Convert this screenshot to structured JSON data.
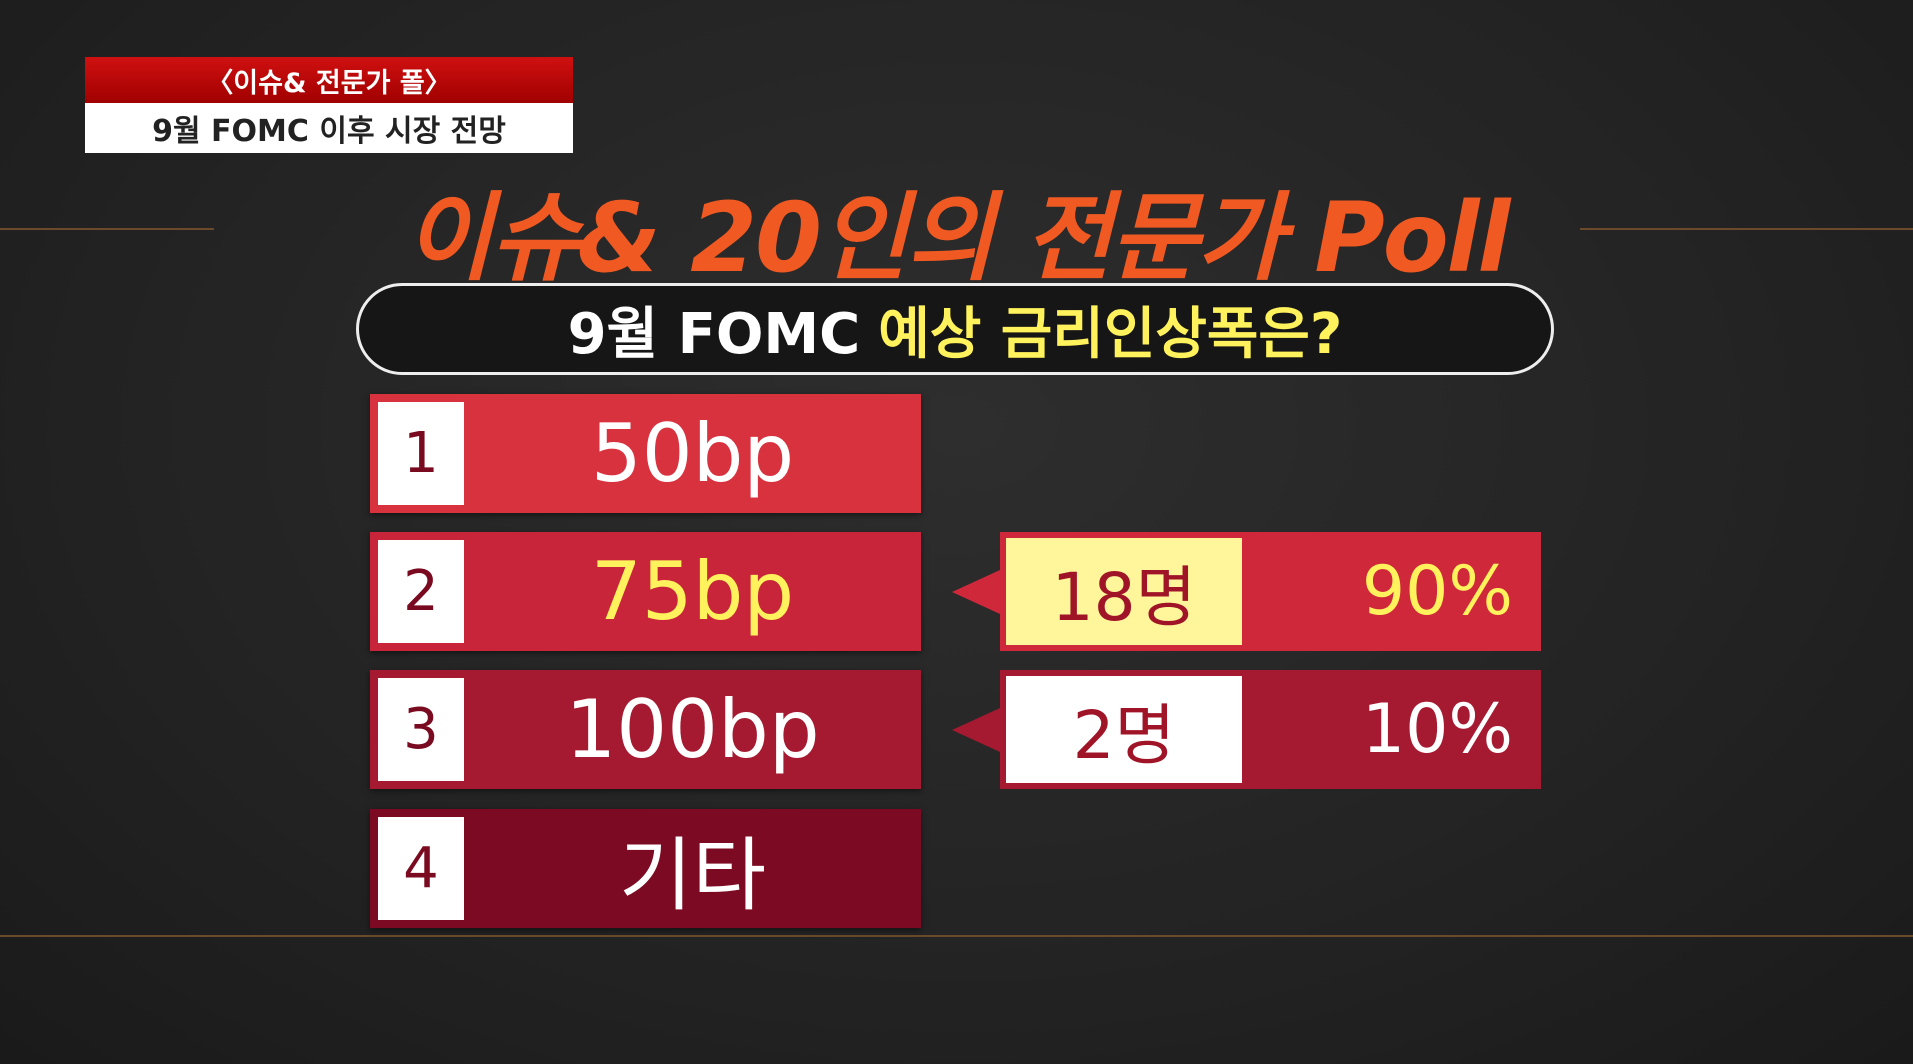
{
  "badge": {
    "top": "〈이슈& 전문가 폴〉",
    "bottom": "9월 FOMC 이후 시장 전망"
  },
  "title": "이슈& 20인의 전문가 Poll",
  "question": {
    "prefix": "9월 FOMC",
    "highlight": "예상 금리인상폭은?"
  },
  "options": [
    {
      "number": "1",
      "label": "50bp"
    },
    {
      "number": "2",
      "label": "75bp",
      "result": {
        "count": "18명",
        "share": "90%"
      }
    },
    {
      "number": "3",
      "label": "100bp",
      "result": {
        "count": "2명",
        "share": "10%"
      }
    },
    {
      "number": "4",
      "label": "기타"
    }
  ]
}
